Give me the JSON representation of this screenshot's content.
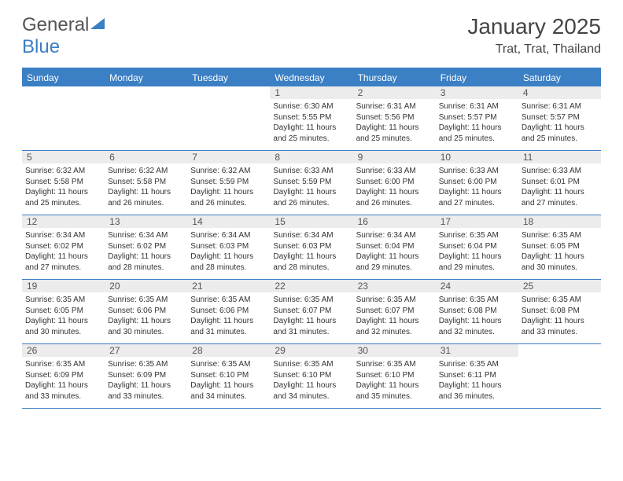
{
  "logo": {
    "part1": "General",
    "part2": "Blue"
  },
  "title": "January 2025",
  "location": "Trat, Trat, Thailand",
  "colors": {
    "accent": "#3b7fc4",
    "daynum_bg": "#ececec",
    "text": "#333333",
    "header_text": "#ffffff",
    "background": "#ffffff"
  },
  "day_headers": [
    "Sunday",
    "Monday",
    "Tuesday",
    "Wednesday",
    "Thursday",
    "Friday",
    "Saturday"
  ],
  "weeks": [
    [
      {
        "day": "",
        "sunrise": "",
        "sunset": "",
        "daylight": ""
      },
      {
        "day": "",
        "sunrise": "",
        "sunset": "",
        "daylight": ""
      },
      {
        "day": "",
        "sunrise": "",
        "sunset": "",
        "daylight": ""
      },
      {
        "day": "1",
        "sunrise": "Sunrise: 6:30 AM",
        "sunset": "Sunset: 5:55 PM",
        "daylight": "Daylight: 11 hours and 25 minutes."
      },
      {
        "day": "2",
        "sunrise": "Sunrise: 6:31 AM",
        "sunset": "Sunset: 5:56 PM",
        "daylight": "Daylight: 11 hours and 25 minutes."
      },
      {
        "day": "3",
        "sunrise": "Sunrise: 6:31 AM",
        "sunset": "Sunset: 5:57 PM",
        "daylight": "Daylight: 11 hours and 25 minutes."
      },
      {
        "day": "4",
        "sunrise": "Sunrise: 6:31 AM",
        "sunset": "Sunset: 5:57 PM",
        "daylight": "Daylight: 11 hours and 25 minutes."
      }
    ],
    [
      {
        "day": "5",
        "sunrise": "Sunrise: 6:32 AM",
        "sunset": "Sunset: 5:58 PM",
        "daylight": "Daylight: 11 hours and 25 minutes."
      },
      {
        "day": "6",
        "sunrise": "Sunrise: 6:32 AM",
        "sunset": "Sunset: 5:58 PM",
        "daylight": "Daylight: 11 hours and 26 minutes."
      },
      {
        "day": "7",
        "sunrise": "Sunrise: 6:32 AM",
        "sunset": "Sunset: 5:59 PM",
        "daylight": "Daylight: 11 hours and 26 minutes."
      },
      {
        "day": "8",
        "sunrise": "Sunrise: 6:33 AM",
        "sunset": "Sunset: 5:59 PM",
        "daylight": "Daylight: 11 hours and 26 minutes."
      },
      {
        "day": "9",
        "sunrise": "Sunrise: 6:33 AM",
        "sunset": "Sunset: 6:00 PM",
        "daylight": "Daylight: 11 hours and 26 minutes."
      },
      {
        "day": "10",
        "sunrise": "Sunrise: 6:33 AM",
        "sunset": "Sunset: 6:00 PM",
        "daylight": "Daylight: 11 hours and 27 minutes."
      },
      {
        "day": "11",
        "sunrise": "Sunrise: 6:33 AM",
        "sunset": "Sunset: 6:01 PM",
        "daylight": "Daylight: 11 hours and 27 minutes."
      }
    ],
    [
      {
        "day": "12",
        "sunrise": "Sunrise: 6:34 AM",
        "sunset": "Sunset: 6:02 PM",
        "daylight": "Daylight: 11 hours and 27 minutes."
      },
      {
        "day": "13",
        "sunrise": "Sunrise: 6:34 AM",
        "sunset": "Sunset: 6:02 PM",
        "daylight": "Daylight: 11 hours and 28 minutes."
      },
      {
        "day": "14",
        "sunrise": "Sunrise: 6:34 AM",
        "sunset": "Sunset: 6:03 PM",
        "daylight": "Daylight: 11 hours and 28 minutes."
      },
      {
        "day": "15",
        "sunrise": "Sunrise: 6:34 AM",
        "sunset": "Sunset: 6:03 PM",
        "daylight": "Daylight: 11 hours and 28 minutes."
      },
      {
        "day": "16",
        "sunrise": "Sunrise: 6:34 AM",
        "sunset": "Sunset: 6:04 PM",
        "daylight": "Daylight: 11 hours and 29 minutes."
      },
      {
        "day": "17",
        "sunrise": "Sunrise: 6:35 AM",
        "sunset": "Sunset: 6:04 PM",
        "daylight": "Daylight: 11 hours and 29 minutes."
      },
      {
        "day": "18",
        "sunrise": "Sunrise: 6:35 AM",
        "sunset": "Sunset: 6:05 PM",
        "daylight": "Daylight: 11 hours and 30 minutes."
      }
    ],
    [
      {
        "day": "19",
        "sunrise": "Sunrise: 6:35 AM",
        "sunset": "Sunset: 6:05 PM",
        "daylight": "Daylight: 11 hours and 30 minutes."
      },
      {
        "day": "20",
        "sunrise": "Sunrise: 6:35 AM",
        "sunset": "Sunset: 6:06 PM",
        "daylight": "Daylight: 11 hours and 30 minutes."
      },
      {
        "day": "21",
        "sunrise": "Sunrise: 6:35 AM",
        "sunset": "Sunset: 6:06 PM",
        "daylight": "Daylight: 11 hours and 31 minutes."
      },
      {
        "day": "22",
        "sunrise": "Sunrise: 6:35 AM",
        "sunset": "Sunset: 6:07 PM",
        "daylight": "Daylight: 11 hours and 31 minutes."
      },
      {
        "day": "23",
        "sunrise": "Sunrise: 6:35 AM",
        "sunset": "Sunset: 6:07 PM",
        "daylight": "Daylight: 11 hours and 32 minutes."
      },
      {
        "day": "24",
        "sunrise": "Sunrise: 6:35 AM",
        "sunset": "Sunset: 6:08 PM",
        "daylight": "Daylight: 11 hours and 32 minutes."
      },
      {
        "day": "25",
        "sunrise": "Sunrise: 6:35 AM",
        "sunset": "Sunset: 6:08 PM",
        "daylight": "Daylight: 11 hours and 33 minutes."
      }
    ],
    [
      {
        "day": "26",
        "sunrise": "Sunrise: 6:35 AM",
        "sunset": "Sunset: 6:09 PM",
        "daylight": "Daylight: 11 hours and 33 minutes."
      },
      {
        "day": "27",
        "sunrise": "Sunrise: 6:35 AM",
        "sunset": "Sunset: 6:09 PM",
        "daylight": "Daylight: 11 hours and 33 minutes."
      },
      {
        "day": "28",
        "sunrise": "Sunrise: 6:35 AM",
        "sunset": "Sunset: 6:10 PM",
        "daylight": "Daylight: 11 hours and 34 minutes."
      },
      {
        "day": "29",
        "sunrise": "Sunrise: 6:35 AM",
        "sunset": "Sunset: 6:10 PM",
        "daylight": "Daylight: 11 hours and 34 minutes."
      },
      {
        "day": "30",
        "sunrise": "Sunrise: 6:35 AM",
        "sunset": "Sunset: 6:10 PM",
        "daylight": "Daylight: 11 hours and 35 minutes."
      },
      {
        "day": "31",
        "sunrise": "Sunrise: 6:35 AM",
        "sunset": "Sunset: 6:11 PM",
        "daylight": "Daylight: 11 hours and 36 minutes."
      },
      {
        "day": "",
        "sunrise": "",
        "sunset": "",
        "daylight": ""
      }
    ]
  ]
}
